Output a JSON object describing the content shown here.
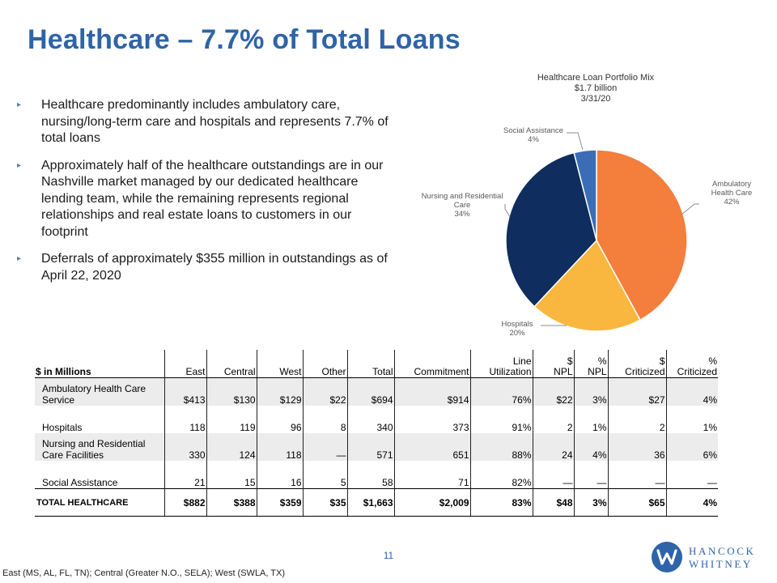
{
  "title": "Healthcare – 7.7% of Total Loans",
  "bullets": [
    "Healthcare predominantly includes ambulatory care, nursing/long-term care and hospitals and represents 7.7% of total loans",
    "Approximately half of the healthcare outstandings are in our Nashville market managed by our dedicated healthcare lending team, while the remaining represents regional relationships and real estate loans to customers in our footprint",
    "Deferrals of approximately $355 million in outstandings as of April 22, 2020"
  ],
  "bullet_marker": "▸",
  "chart_data": {
    "type": "pie",
    "title": "Healthcare Loan Portfolio Mix",
    "subtitle": "$1.7 billion",
    "date": "3/31/20",
    "slices": [
      {
        "label": "Ambulatory Health Care",
        "value": 42,
        "display": "42%",
        "color": "#F47E3C"
      },
      {
        "label": "Hospitals",
        "value": 20,
        "display": "20%",
        "color": "#F9B73F"
      },
      {
        "label": "Nursing and Residential Care",
        "value": 34,
        "display": "34%",
        "color": "#0F2D5E"
      },
      {
        "label": "Social Assistance",
        "value": 4,
        "display": "4%",
        "color": "#3A6DB5"
      }
    ]
  },
  "table": {
    "headers": [
      {
        "l1": "",
        "l2": "$ in Millions"
      },
      {
        "l1": "",
        "l2": "East"
      },
      {
        "l1": "",
        "l2": "Central"
      },
      {
        "l1": "",
        "l2": "West"
      },
      {
        "l1": "",
        "l2": "Other"
      },
      {
        "l1": "",
        "l2": "Total"
      },
      {
        "l1": "",
        "l2": "Commitment"
      },
      {
        "l1": "Line",
        "l2": "Utilization"
      },
      {
        "l1": "$",
        "l2": "NPL"
      },
      {
        "l1": "%",
        "l2": "NPL"
      },
      {
        "l1": "$",
        "l2": "Criticized"
      },
      {
        "l1": "%",
        "l2": "Criticized"
      }
    ],
    "rows": [
      {
        "name1": "Ambulatory Health Care",
        "name2": "Service",
        "cells": [
          "$413",
          "$130",
          "$129",
          "$22",
          "$694",
          "$914",
          "76%",
          "$22",
          "3%",
          "$27",
          "4%"
        ]
      },
      {
        "name1": "",
        "name2": "Hospitals",
        "cells": [
          "118",
          "119",
          "96",
          "8",
          "340",
          "373",
          "91%",
          "2",
          "1%",
          "2",
          "1%"
        ]
      },
      {
        "name1": "Nursing and Residential",
        "name2": "Care Facilities",
        "cells": [
          "330",
          "124",
          "118",
          "—",
          "571",
          "651",
          "88%",
          "24",
          "4%",
          "36",
          "6%"
        ]
      },
      {
        "name1": "",
        "name2": "Social Assistance",
        "cells": [
          "21",
          "15",
          "16",
          "5",
          "58",
          "71",
          "82%",
          "—",
          "—",
          "—",
          "—"
        ]
      }
    ],
    "total": {
      "name": "TOTAL HEALTHCARE",
      "cells": [
        "$882",
        "$388",
        "$359",
        "$35",
        "$1,663",
        "$2,009",
        "83%",
        "$48",
        "3%",
        "$65",
        "4%"
      ]
    }
  },
  "page_number": "11",
  "footnote": "East (MS, AL, FL, TN); Central (Greater N.O., SELA); West (SWLA, TX)",
  "logo": {
    "line1": "HANCOCK",
    "line2": "WHITNEY",
    "color": "#2E64A8"
  }
}
